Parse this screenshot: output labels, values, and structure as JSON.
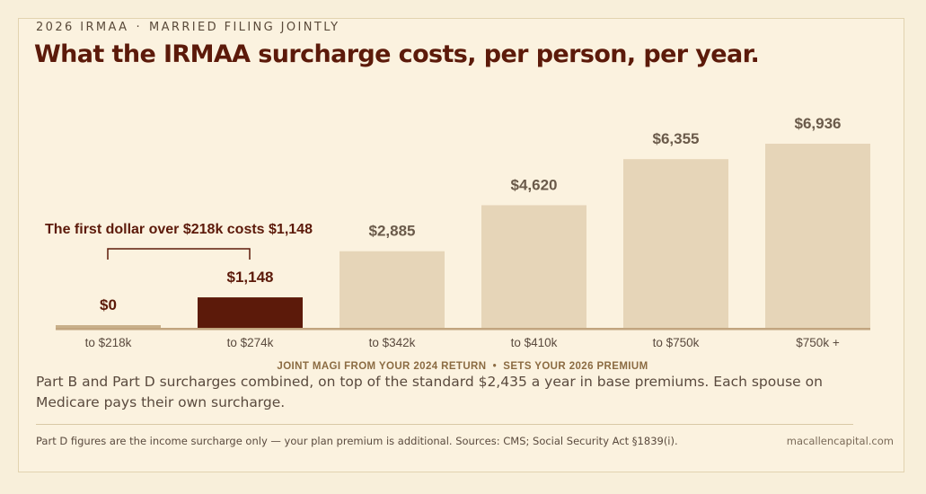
{
  "eyebrow": {
    "left": "2026 IRMAA",
    "separator": "·",
    "right": "MARRIED FILING JOINTLY"
  },
  "title": "What the IRMAA surcharge costs, per person, per year.",
  "callout": "The first dollar over $218k costs $1,148",
  "body": "Part B and Part D surcharges combined, on top of the standard $2,435 a year in base premiums. Each spouse on Medicare pays their own surcharge.",
  "footnote": "Part D figures are the income surcharge only — your plan premium is additional. Sources: CMS; Social Security Act §1839(i).",
  "site": "macallencapital.com",
  "colors": {
    "background": "#fbf2df",
    "bar_default": "#e6d5b8",
    "bar_highlight": "#5c1a0a",
    "bar_zero": "#c9b08a",
    "baseline": "#c2a57f",
    "title": "#5c1a0a",
    "value_label": "#6a5a4a",
    "axis_title": "#8b6b42"
  },
  "chart_data": {
    "type": "bar",
    "categories": [
      "to $218k",
      "to $274k",
      "to $342k",
      "to $410k",
      "to $750k",
      "$750k +"
    ],
    "values": [
      0,
      1148,
      2885,
      4620,
      6355,
      6936
    ],
    "data_labels": [
      "$0",
      "$1,148",
      "$2,885",
      "$4,620",
      "$6,355",
      "$6,936"
    ],
    "highlight_index": 1,
    "xlabel": "JOINT MAGI FROM YOUR 2024 RETURN  •  SETS YOUR 2026 PREMIUM",
    "ylabel": "",
    "ylim": [
      0,
      6936
    ],
    "grid": false,
    "legend": "none"
  }
}
